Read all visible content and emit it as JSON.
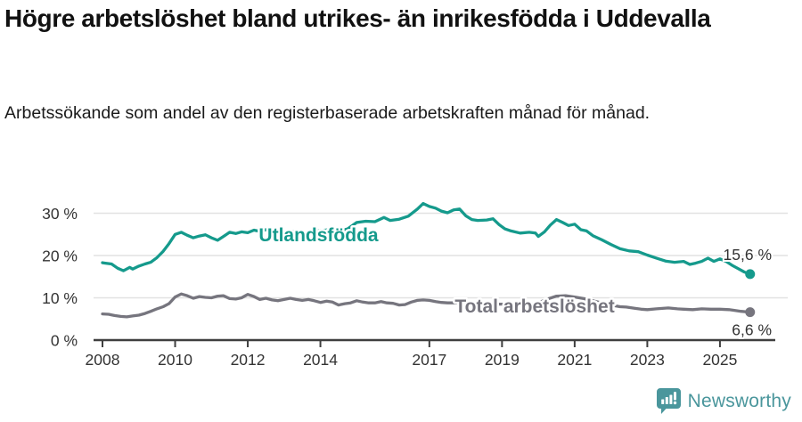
{
  "header": {
    "title": "Högre arbetslöshet bland utrikes- än inrikesfödda i Uddevalla",
    "subtitle": "Arbetssökande som andel av den registerbaserade arbetskraften månad för månad."
  },
  "footer": {
    "brand": "Newsworthy"
  },
  "colors": {
    "foreign_born_line": "#159A8C",
    "total_line": "#76757E",
    "axis_text": "#333333",
    "gridline": "#E2E2E2",
    "axis_line": "#3F3F3F",
    "brand_teal": "#4A969C",
    "background": "#FFFFFF"
  },
  "chart_data": {
    "type": "line",
    "title": "Högre arbetslöshet bland utrikes- än inrikesfödda i Uddevalla",
    "subtitle": "Arbetssökande som andel av den registerbaserade arbetskraften månad för månad.",
    "xlabel": "",
    "ylabel": "",
    "x_unit": "decimal_year",
    "xlim": [
      2007.75,
      2026.5
    ],
    "ylim": [
      0,
      35
    ],
    "grid": "horizontal",
    "legend_position": "inline-labels",
    "x_ticks": [
      2008,
      2010,
      2012,
      2014,
      2017,
      2019,
      2021,
      2023,
      2025
    ],
    "x_tick_labels": [
      "2008",
      "2010",
      "2012",
      "2014",
      "2017",
      "2019",
      "2021",
      "2023",
      "2025"
    ],
    "y_ticks": [
      0,
      10,
      20,
      30
    ],
    "y_tick_labels": [
      "0 %",
      "10 %",
      "20 %",
      "30 %"
    ],
    "series": [
      {
        "name": "Utlandsfödda",
        "color": "#159A8C",
        "end_value": 15.6,
        "end_value_label": "15,6 %",
        "label_at": [
          2013.95,
          23.4
        ],
        "end_label_dy": -16,
        "points": [
          [
            2008.0,
            18.3
          ],
          [
            2008.08,
            18.2
          ],
          [
            2008.25,
            18.0
          ],
          [
            2008.42,
            17.0
          ],
          [
            2008.58,
            16.4
          ],
          [
            2008.75,
            17.2
          ],
          [
            2008.83,
            16.8
          ],
          [
            2009.0,
            17.5
          ],
          [
            2009.17,
            18.0
          ],
          [
            2009.33,
            18.4
          ],
          [
            2009.5,
            19.5
          ],
          [
            2009.67,
            21.0
          ],
          [
            2009.83,
            22.8
          ],
          [
            2010.0,
            25.0
          ],
          [
            2010.17,
            25.5
          ],
          [
            2010.33,
            24.8
          ],
          [
            2010.5,
            24.2
          ],
          [
            2010.67,
            24.6
          ],
          [
            2010.83,
            24.9
          ],
          [
            2011.0,
            24.2
          ],
          [
            2011.17,
            23.6
          ],
          [
            2011.33,
            24.5
          ],
          [
            2011.5,
            25.5
          ],
          [
            2011.67,
            25.2
          ],
          [
            2011.83,
            25.6
          ],
          [
            2012.0,
            25.4
          ],
          [
            2012.17,
            26.0
          ],
          [
            2012.33,
            25.7
          ],
          [
            2012.5,
            26.1
          ],
          [
            2012.75,
            25.6
          ],
          [
            2013.0,
            25.4
          ],
          [
            2013.25,
            25.7
          ],
          [
            2013.5,
            25.3
          ],
          [
            2013.75,
            25.6
          ],
          [
            2014.0,
            25.9
          ],
          [
            2014.25,
            26.1
          ],
          [
            2014.5,
            25.7
          ],
          [
            2014.75,
            26.3
          ],
          [
            2015.0,
            27.8
          ],
          [
            2015.25,
            28.1
          ],
          [
            2015.5,
            28.0
          ],
          [
            2015.75,
            29.0
          ],
          [
            2015.92,
            28.3
          ],
          [
            2016.17,
            28.6
          ],
          [
            2016.42,
            29.3
          ],
          [
            2016.67,
            31.0
          ],
          [
            2016.83,
            32.3
          ],
          [
            2017.0,
            31.6
          ],
          [
            2017.17,
            31.2
          ],
          [
            2017.33,
            30.5
          ],
          [
            2017.5,
            30.1
          ],
          [
            2017.67,
            30.8
          ],
          [
            2017.83,
            31.0
          ],
          [
            2018.0,
            29.4
          ],
          [
            2018.17,
            28.5
          ],
          [
            2018.33,
            28.3
          ],
          [
            2018.58,
            28.4
          ],
          [
            2018.75,
            28.7
          ],
          [
            2018.92,
            27.3
          ],
          [
            2019.08,
            26.3
          ],
          [
            2019.25,
            25.8
          ],
          [
            2019.5,
            25.3
          ],
          [
            2019.75,
            25.5
          ],
          [
            2019.92,
            25.3
          ],
          [
            2020.0,
            24.5
          ],
          [
            2020.17,
            25.6
          ],
          [
            2020.33,
            27.2
          ],
          [
            2020.5,
            28.5
          ],
          [
            2020.67,
            27.8
          ],
          [
            2020.83,
            27.1
          ],
          [
            2021.0,
            27.4
          ],
          [
            2021.17,
            26.1
          ],
          [
            2021.33,
            25.8
          ],
          [
            2021.5,
            24.7
          ],
          [
            2021.75,
            23.7
          ],
          [
            2022.0,
            22.6
          ],
          [
            2022.25,
            21.6
          ],
          [
            2022.5,
            21.1
          ],
          [
            2022.75,
            20.9
          ],
          [
            2023.0,
            20.1
          ],
          [
            2023.25,
            19.4
          ],
          [
            2023.5,
            18.7
          ],
          [
            2023.75,
            18.4
          ],
          [
            2024.0,
            18.6
          ],
          [
            2024.17,
            17.9
          ],
          [
            2024.33,
            18.2
          ],
          [
            2024.5,
            18.6
          ],
          [
            2024.67,
            19.4
          ],
          [
            2024.83,
            18.6
          ],
          [
            2025.0,
            19.2
          ],
          [
            2025.17,
            18.6
          ],
          [
            2025.33,
            17.7
          ],
          [
            2025.5,
            16.9
          ],
          [
            2025.67,
            16.1
          ],
          [
            2025.83,
            15.6
          ]
        ]
      },
      {
        "name": "Total arbetslöshet",
        "color": "#76757E",
        "end_value": 6.6,
        "end_value_label": "6,6 %",
        "label_at": [
          2019.9,
          6.5
        ],
        "end_label_dy": 26,
        "points": [
          [
            2008.0,
            6.2
          ],
          [
            2008.17,
            6.1
          ],
          [
            2008.33,
            5.8
          ],
          [
            2008.5,
            5.6
          ],
          [
            2008.67,
            5.5
          ],
          [
            2008.83,
            5.7
          ],
          [
            2009.0,
            5.9
          ],
          [
            2009.17,
            6.3
          ],
          [
            2009.33,
            6.8
          ],
          [
            2009.5,
            7.4
          ],
          [
            2009.67,
            7.9
          ],
          [
            2009.83,
            8.6
          ],
          [
            2010.0,
            10.2
          ],
          [
            2010.17,
            10.9
          ],
          [
            2010.33,
            10.5
          ],
          [
            2010.5,
            9.9
          ],
          [
            2010.67,
            10.3
          ],
          [
            2010.83,
            10.1
          ],
          [
            2011.0,
            10.0
          ],
          [
            2011.17,
            10.4
          ],
          [
            2011.33,
            10.5
          ],
          [
            2011.5,
            9.8
          ],
          [
            2011.67,
            9.7
          ],
          [
            2011.83,
            10.0
          ],
          [
            2012.0,
            10.8
          ],
          [
            2012.17,
            10.3
          ],
          [
            2012.33,
            9.6
          ],
          [
            2012.5,
            9.9
          ],
          [
            2012.67,
            9.5
          ],
          [
            2012.83,
            9.3
          ],
          [
            2013.0,
            9.6
          ],
          [
            2013.17,
            9.9
          ],
          [
            2013.33,
            9.6
          ],
          [
            2013.5,
            9.4
          ],
          [
            2013.67,
            9.6
          ],
          [
            2013.83,
            9.3
          ],
          [
            2014.0,
            8.9
          ],
          [
            2014.17,
            9.2
          ],
          [
            2014.33,
            9.0
          ],
          [
            2014.5,
            8.3
          ],
          [
            2014.67,
            8.6
          ],
          [
            2014.83,
            8.8
          ],
          [
            2015.0,
            9.3
          ],
          [
            2015.17,
            9.0
          ],
          [
            2015.33,
            8.8
          ],
          [
            2015.5,
            8.8
          ],
          [
            2015.67,
            9.1
          ],
          [
            2015.83,
            8.8
          ],
          [
            2016.0,
            8.7
          ],
          [
            2016.17,
            8.3
          ],
          [
            2016.33,
            8.4
          ],
          [
            2016.5,
            9.0
          ],
          [
            2016.67,
            9.4
          ],
          [
            2016.83,
            9.5
          ],
          [
            2017.0,
            9.4
          ],
          [
            2017.17,
            9.1
          ],
          [
            2017.33,
            8.9
          ],
          [
            2017.5,
            8.8
          ],
          [
            2017.75,
            8.8
          ],
          [
            2018.0,
            8.7
          ],
          [
            2018.25,
            8.6
          ],
          [
            2018.5,
            8.6
          ],
          [
            2018.75,
            8.5
          ],
          [
            2019.0,
            8.5
          ],
          [
            2019.25,
            8.4
          ],
          [
            2019.5,
            8.4
          ],
          [
            2019.75,
            8.5
          ],
          [
            2020.0,
            8.8
          ],
          [
            2020.25,
            9.7
          ],
          [
            2020.5,
            10.4
          ],
          [
            2020.75,
            10.5
          ],
          [
            2021.0,
            10.2
          ],
          [
            2021.25,
            9.8
          ],
          [
            2021.5,
            9.3
          ],
          [
            2021.75,
            8.8
          ],
          [
            2022.0,
            8.3
          ],
          [
            2022.25,
            7.9
          ],
          [
            2022.42,
            7.8
          ],
          [
            2022.67,
            7.5
          ],
          [
            2022.83,
            7.3
          ],
          [
            2023.0,
            7.2
          ],
          [
            2023.25,
            7.4
          ],
          [
            2023.58,
            7.6
          ],
          [
            2023.83,
            7.4
          ],
          [
            2024.0,
            7.3
          ],
          [
            2024.25,
            7.2
          ],
          [
            2024.5,
            7.4
          ],
          [
            2024.75,
            7.3
          ],
          [
            2025.0,
            7.3
          ],
          [
            2025.25,
            7.2
          ],
          [
            2025.42,
            7.0
          ],
          [
            2025.58,
            6.8
          ],
          [
            2025.83,
            6.6
          ]
        ]
      }
    ]
  }
}
